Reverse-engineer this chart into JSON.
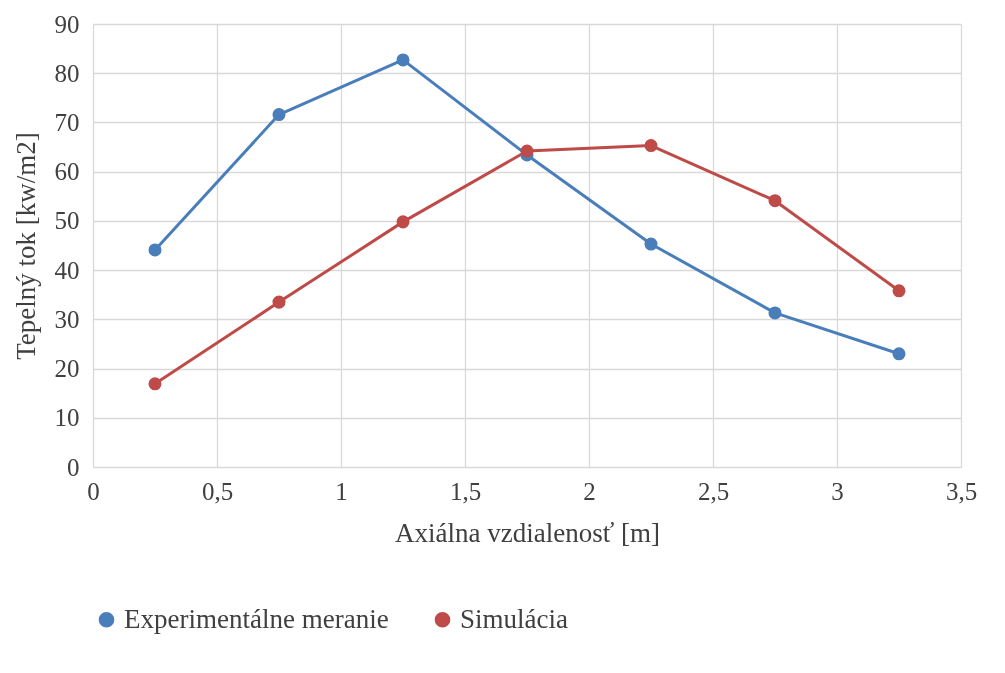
{
  "chart_data": {
    "type": "line",
    "xlabel": "Axiálna vzdialenosť [m]",
    "ylabel": "Tepelný tok [kw/m2]",
    "x": [
      0.25,
      0.75,
      1.25,
      1.75,
      2.25,
      2.75,
      3.25
    ],
    "series": [
      {
        "name": "Experimentálne meranie",
        "color": "#4a7ebb",
        "values": [
          44.1,
          71.6,
          82.7,
          63.4,
          45.3,
          31.3,
          23
        ]
      },
      {
        "name": "Simulácia",
        "color": "#be4b48",
        "values": [
          16.9,
          33.5,
          49.8,
          64.2,
          65.3,
          54.1,
          35.8
        ]
      }
    ],
    "xlim": [
      0,
      3.5
    ],
    "xticks": [
      0,
      {
        "value": 0.5,
        "label": "0,5"
      },
      1,
      {
        "value": 1.5,
        "label": "1,5"
      },
      2,
      {
        "value": 2.5,
        "label": "2,5"
      },
      3,
      {
        "value": 3.5,
        "label": "3,5"
      }
    ],
    "ylim": [
      0,
      90
    ],
    "yticks": [
      0,
      10,
      20,
      30,
      40,
      50,
      60,
      70,
      80,
      90
    ],
    "grid": true,
    "legend": "bottom",
    "marker": "circle",
    "line_style": "solid"
  }
}
